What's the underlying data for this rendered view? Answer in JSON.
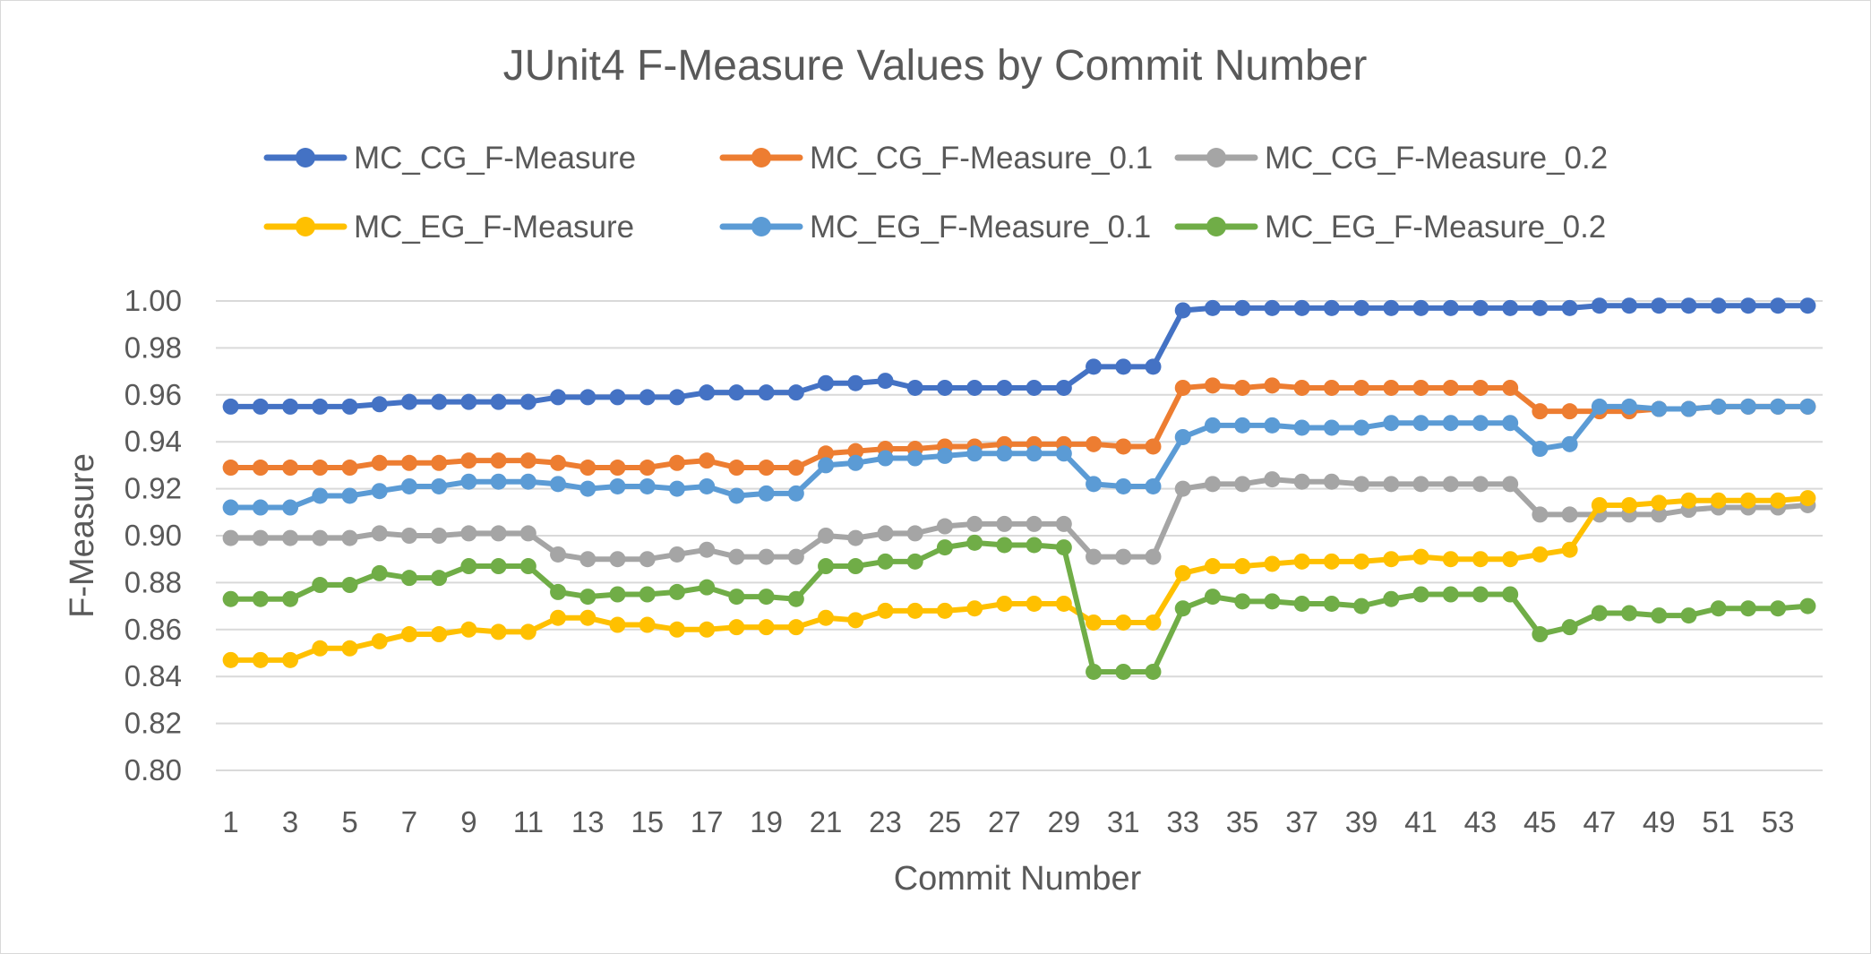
{
  "chart_data": {
    "type": "line",
    "title": "JUnit4 F-Measure Values by Commit Number",
    "xlabel": "Commit Number",
    "ylabel": "F-Measure",
    "ylim": [
      0.8,
      1.0
    ],
    "y_ticks": [
      "0.80",
      "0.82",
      "0.84",
      "0.86",
      "0.88",
      "0.90",
      "0.92",
      "0.94",
      "0.96",
      "0.98",
      "1.00"
    ],
    "x_ticks": [
      "1",
      "3",
      "5",
      "7",
      "9",
      "11",
      "13",
      "15",
      "17",
      "19",
      "21",
      "23",
      "25",
      "27",
      "29",
      "31",
      "33",
      "35",
      "37",
      "39",
      "41",
      "43",
      "45",
      "47",
      "49",
      "51",
      "53"
    ],
    "x": [
      1,
      2,
      3,
      4,
      5,
      6,
      7,
      8,
      9,
      10,
      11,
      12,
      13,
      14,
      15,
      16,
      17,
      18,
      19,
      20,
      21,
      22,
      23,
      24,
      25,
      26,
      27,
      28,
      29,
      30,
      31,
      32,
      33,
      34,
      35,
      36,
      37,
      38,
      39,
      40,
      41,
      42,
      43,
      44,
      45,
      46,
      47,
      48,
      49,
      50,
      51,
      52,
      53,
      54
    ],
    "grid": "horizontal",
    "legend_position": "top",
    "series": [
      {
        "name": "MC_CG_F-Measure",
        "color": "#4472C4",
        "values": [
          0.955,
          0.955,
          0.955,
          0.955,
          0.955,
          0.956,
          0.957,
          0.957,
          0.957,
          0.957,
          0.957,
          0.959,
          0.959,
          0.959,
          0.959,
          0.959,
          0.961,
          0.961,
          0.961,
          0.961,
          0.965,
          0.965,
          0.966,
          0.963,
          0.963,
          0.963,
          0.963,
          0.963,
          0.963,
          0.972,
          0.972,
          0.972,
          0.996,
          0.997,
          0.997,
          0.997,
          0.997,
          0.997,
          0.997,
          0.997,
          0.997,
          0.997,
          0.997,
          0.997,
          0.997,
          0.997,
          0.998,
          0.998,
          0.998,
          0.998,
          0.998,
          0.998,
          0.998,
          0.998
        ]
      },
      {
        "name": "MC_CG_F-Measure_0.1",
        "color": "#ED7D31",
        "values": [
          0.929,
          0.929,
          0.929,
          0.929,
          0.929,
          0.931,
          0.931,
          0.931,
          0.932,
          0.932,
          0.932,
          0.931,
          0.929,
          0.929,
          0.929,
          0.931,
          0.932,
          0.929,
          0.929,
          0.929,
          0.935,
          0.936,
          0.937,
          0.937,
          0.938,
          0.938,
          0.939,
          0.939,
          0.939,
          0.939,
          0.938,
          0.938,
          0.963,
          0.964,
          0.963,
          0.964,
          0.963,
          0.963,
          0.963,
          0.963,
          0.963,
          0.963,
          0.963,
          0.963,
          0.953,
          0.953,
          0.953,
          0.953,
          0.954,
          0.954,
          0.955,
          0.955,
          0.955,
          0.955
        ]
      },
      {
        "name": "MC_CG_F-Measure_0.2",
        "color": "#A5A5A5",
        "values": [
          0.899,
          0.899,
          0.899,
          0.899,
          0.899,
          0.901,
          0.9,
          0.9,
          0.901,
          0.901,
          0.901,
          0.892,
          0.89,
          0.89,
          0.89,
          0.892,
          0.894,
          0.891,
          0.891,
          0.891,
          0.9,
          0.899,
          0.901,
          0.901,
          0.904,
          0.905,
          0.905,
          0.905,
          0.905,
          0.891,
          0.891,
          0.891,
          0.92,
          0.922,
          0.922,
          0.924,
          0.923,
          0.923,
          0.922,
          0.922,
          0.922,
          0.922,
          0.922,
          0.922,
          0.909,
          0.909,
          0.909,
          0.909,
          0.909,
          0.911,
          0.912,
          0.912,
          0.912,
          0.913
        ]
      },
      {
        "name": "MC_EG_F-Measure",
        "color": "#FFC000",
        "values": [
          0.847,
          0.847,
          0.847,
          0.852,
          0.852,
          0.855,
          0.858,
          0.858,
          0.86,
          0.859,
          0.859,
          0.865,
          0.865,
          0.862,
          0.862,
          0.86,
          0.86,
          0.861,
          0.861,
          0.861,
          0.865,
          0.864,
          0.868,
          0.868,
          0.868,
          0.869,
          0.871,
          0.871,
          0.871,
          0.863,
          0.863,
          0.863,
          0.884,
          0.887,
          0.887,
          0.888,
          0.889,
          0.889,
          0.889,
          0.89,
          0.891,
          0.89,
          0.89,
          0.89,
          0.892,
          0.894,
          0.913,
          0.913,
          0.914,
          0.915,
          0.915,
          0.915,
          0.915,
          0.916
        ]
      },
      {
        "name": "MC_EG_F-Measure_0.1",
        "color": "#5B9BD5",
        "values": [
          0.912,
          0.912,
          0.912,
          0.917,
          0.917,
          0.919,
          0.921,
          0.921,
          0.923,
          0.923,
          0.923,
          0.922,
          0.92,
          0.921,
          0.921,
          0.92,
          0.921,
          0.917,
          0.918,
          0.918,
          0.93,
          0.931,
          0.933,
          0.933,
          0.934,
          0.935,
          0.935,
          0.935,
          0.935,
          0.922,
          0.921,
          0.921,
          0.942,
          0.947,
          0.947,
          0.947,
          0.946,
          0.946,
          0.946,
          0.948,
          0.948,
          0.948,
          0.948,
          0.948,
          0.937,
          0.939,
          0.955,
          0.955,
          0.954,
          0.954,
          0.955,
          0.955,
          0.955,
          0.955
        ]
      },
      {
        "name": "MC_EG_F-Measure_0.2",
        "color": "#70AD47",
        "values": [
          0.873,
          0.873,
          0.873,
          0.879,
          0.879,
          0.884,
          0.882,
          0.882,
          0.887,
          0.887,
          0.887,
          0.876,
          0.874,
          0.875,
          0.875,
          0.876,
          0.878,
          0.874,
          0.874,
          0.873,
          0.887,
          0.887,
          0.889,
          0.889,
          0.895,
          0.897,
          0.896,
          0.896,
          0.895,
          0.842,
          0.842,
          0.842,
          0.869,
          0.874,
          0.872,
          0.872,
          0.871,
          0.871,
          0.87,
          0.873,
          0.875,
          0.875,
          0.875,
          0.875,
          0.858,
          0.861,
          0.867,
          0.867,
          0.866,
          0.866,
          0.869,
          0.869,
          0.869,
          0.87
        ]
      }
    ]
  }
}
